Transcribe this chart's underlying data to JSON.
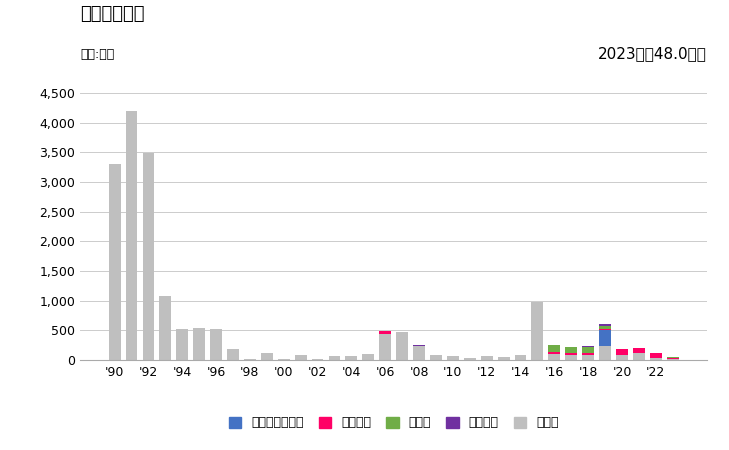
{
  "title": "輸出量の推移",
  "unit_label": "単位:トン",
  "annotation": "2023年：48.0トン",
  "years": [
    1990,
    1991,
    1992,
    1993,
    1994,
    1995,
    1996,
    1997,
    1998,
    1999,
    2000,
    2001,
    2002,
    2003,
    2004,
    2005,
    2006,
    2007,
    2008,
    2009,
    2010,
    2011,
    2012,
    2013,
    2014,
    2015,
    2016,
    2017,
    2018,
    2019,
    2020,
    2021,
    2022,
    2023
  ],
  "burkina_faso": [
    0,
    0,
    0,
    0,
    0,
    0,
    0,
    0,
    0,
    0,
    0,
    0,
    0,
    0,
    0,
    0,
    0,
    0,
    0,
    0,
    0,
    0,
    0,
    0,
    0,
    0,
    0,
    0,
    0,
    270,
    0,
    0,
    0,
    0
  ],
  "vietnam": [
    0,
    0,
    0,
    0,
    0,
    0,
    0,
    0,
    0,
    0,
    0,
    0,
    0,
    0,
    0,
    0,
    50,
    0,
    0,
    0,
    0,
    0,
    0,
    0,
    0,
    0,
    30,
    30,
    30,
    20,
    100,
    100,
    80,
    20
  ],
  "germany": [
    0,
    0,
    0,
    0,
    0,
    0,
    0,
    0,
    0,
    0,
    0,
    0,
    0,
    0,
    0,
    0,
    0,
    0,
    0,
    0,
    0,
    0,
    0,
    0,
    0,
    0,
    120,
    100,
    100,
    50,
    0,
    0,
    0,
    10
  ],
  "italy": [
    0,
    0,
    0,
    0,
    0,
    0,
    0,
    0,
    0,
    0,
    0,
    0,
    0,
    0,
    0,
    0,
    0,
    0,
    15,
    0,
    0,
    0,
    0,
    0,
    0,
    0,
    0,
    0,
    20,
    30,
    0,
    0,
    0,
    0
  ],
  "others": [
    3300,
    4200,
    3480,
    1080,
    520,
    540,
    520,
    180,
    15,
    120,
    20,
    80,
    20,
    60,
    60,
    100,
    440,
    480,
    230,
    90,
    60,
    40,
    70,
    50,
    80,
    970,
    100,
    90,
    90,
    230,
    80,
    110,
    40,
    18
  ],
  "colors": {
    "burkina_faso": "#4472c4",
    "vietnam": "#ff0066",
    "germany": "#70ad47",
    "italy": "#7030a0",
    "others": "#bfbfbf"
  },
  "legend_labels": [
    "ブルキナファソ",
    "ベトナム",
    "ドイツ",
    "イタリア",
    "その他"
  ],
  "ylim": [
    0,
    4700
  ],
  "yticks": [
    0,
    500,
    1000,
    1500,
    2000,
    2500,
    3000,
    3500,
    4000,
    4500
  ],
  "background_color": "#ffffff"
}
